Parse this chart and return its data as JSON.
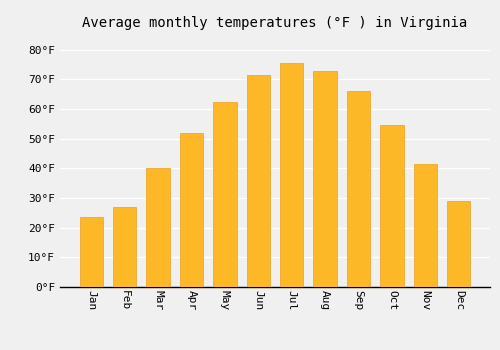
{
  "title": "Average monthly temperatures (°F ) in Virginia",
  "months": [
    "Jan",
    "Feb",
    "Mar",
    "Apr",
    "May",
    "Jun",
    "Jul",
    "Aug",
    "Sep",
    "Oct",
    "Nov",
    "Dec"
  ],
  "values": [
    23.5,
    27.0,
    40.0,
    52.0,
    62.5,
    71.5,
    75.5,
    73.0,
    66.0,
    54.5,
    41.5,
    29.0
  ],
  "bar_color": "#FDB827",
  "bar_edge_color": "#E8A020",
  "background_color": "#F0F0F0",
  "grid_color": "#FFFFFF",
  "ylim": [
    0,
    85
  ],
  "yticks": [
    0,
    10,
    20,
    30,
    40,
    50,
    60,
    70,
    80
  ],
  "ylabel_suffix": "°F",
  "title_fontsize": 10,
  "tick_fontsize": 8,
  "font_family": "monospace",
  "bar_width": 0.7,
  "xlabel_rotation": -90
}
